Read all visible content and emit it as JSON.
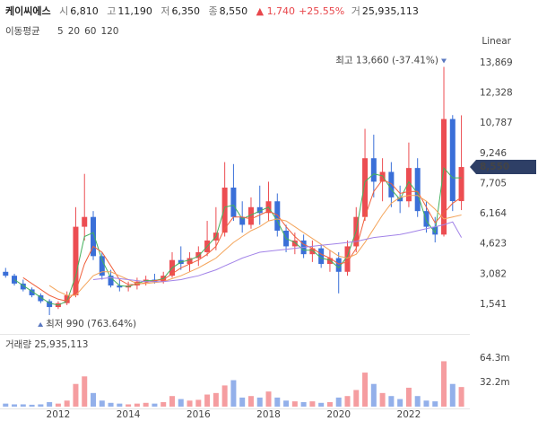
{
  "header": {
    "name": "케이씨에스",
    "items": [
      {
        "label": "시",
        "value": "6,810"
      },
      {
        "label": "고",
        "value": "11,190"
      },
      {
        "label": "저",
        "value": "6,350"
      },
      {
        "label": "종",
        "value": "8,550"
      }
    ],
    "change": "▲ 1,740",
    "change_pct": "+25.55%",
    "volume": {
      "label": "거",
      "value": "25,935,113"
    }
  },
  "chart_data": {
    "type": "candlestick",
    "scale_label": "Linear",
    "legend_title": "이동평균",
    "x": [
      2010.5,
      2010.75,
      2011.0,
      2011.25,
      2011.5,
      2011.75,
      2012.0,
      2012.25,
      2012.5,
      2012.75,
      2013.0,
      2013.25,
      2013.5,
      2013.75,
      2014.0,
      2014.25,
      2014.5,
      2014.75,
      2015.0,
      2015.25,
      2015.5,
      2015.75,
      2016.0,
      2016.25,
      2016.5,
      2016.75,
      2017.0,
      2017.25,
      2017.5,
      2017.75,
      2018.0,
      2018.25,
      2018.5,
      2018.75,
      2019.0,
      2019.25,
      2019.5,
      2019.75,
      2020.0,
      2020.25,
      2020.5,
      2020.75,
      2021.0,
      2021.25,
      2021.5,
      2021.75,
      2022.0,
      2022.25,
      2022.5,
      2022.75,
      2023.0,
      2023.25,
      2023.5
    ],
    "open": [
      3200,
      3000,
      2600,
      2300,
      2000,
      1700,
      1400,
      1600,
      2000,
      5500,
      6000,
      4000,
      3000,
      2500,
      2400,
      2500,
      2700,
      2800,
      2700,
      3000,
      3800,
      3600,
      3900,
      4200,
      4800,
      5200,
      7500,
      6000,
      5600,
      6500,
      6200,
      6800,
      5300,
      4500,
      4800,
      4100,
      4400,
      3600,
      3900,
      3200,
      4500,
      6000,
      9000,
      7800,
      8300,
      7000,
      6800,
      8500,
      6300,
      5500,
      5100,
      11000,
      6810
    ],
    "high": [
      3400,
      3100,
      2800,
      2400,
      2100,
      1800,
      1700,
      2200,
      6500,
      8200,
      6300,
      4200,
      3300,
      2800,
      2700,
      2900,
      3000,
      3100,
      3200,
      4200,
      4500,
      4200,
      4500,
      5800,
      6500,
      8800,
      8700,
      6800,
      7000,
      7600,
      7800,
      7200,
      5600,
      5200,
      5100,
      4800,
      4600,
      4300,
      4200,
      4800,
      6500,
      10500,
      10200,
      9000,
      8800,
      7600,
      9800,
      9000,
      6800,
      6000,
      13660,
      11200,
      11190
    ],
    "low": [
      2900,
      2500,
      2200,
      1900,
      1600,
      990,
      1300,
      1500,
      1900,
      4800,
      3800,
      2800,
      2400,
      2200,
      2200,
      2300,
      2500,
      2600,
      2600,
      2900,
      3300,
      3200,
      3500,
      4000,
      4300,
      5000,
      5800,
      5200,
      5400,
      5600,
      5800,
      5000,
      4200,
      4100,
      3900,
      3700,
      3400,
      3200,
      2100,
      3000,
      4200,
      5800,
      7000,
      6800,
      6500,
      6200,
      6500,
      6000,
      5200,
      4700,
      5000,
      6300,
      6350
    ],
    "close": [
      3000,
      2600,
      2300,
      2000,
      1700,
      1400,
      1600,
      2000,
      5500,
      6000,
      4000,
      3000,
      2500,
      2400,
      2500,
      2700,
      2800,
      2700,
      3000,
      3800,
      3600,
      3900,
      4200,
      4800,
      5200,
      7500,
      6000,
      5600,
      6500,
      6200,
      6800,
      5300,
      4500,
      4800,
      4100,
      4400,
      3600,
      3900,
      3200,
      4500,
      6000,
      9000,
      7800,
      8300,
      7000,
      6800,
      8500,
      6300,
      5500,
      5100,
      11000,
      6810,
      8550
    ],
    "volume": [
      4,
      3,
      3,
      2.5,
      3,
      6,
      4,
      8,
      30,
      40,
      18,
      8,
      5,
      4,
      3,
      4,
      5,
      4,
      6,
      14,
      10,
      8,
      9,
      16,
      18,
      28,
      35,
      12,
      14,
      12,
      20,
      12,
      8,
      7,
      6,
      7,
      5,
      6,
      12,
      14,
      22,
      45,
      30,
      18,
      14,
      10,
      25,
      14,
      8,
      7,
      60,
      30,
      25.935113
    ],
    "series": [
      {
        "name": "5",
        "color": "#43b05c",
        "values": [
          null,
          2800,
          2500,
          2200,
          1900,
          1600,
          1500,
          1700,
          3000,
          5000,
          5200,
          3800,
          2900,
          2500,
          2450,
          2600,
          2750,
          2750,
          2850,
          3400,
          3700,
          3800,
          4000,
          4500,
          5000,
          6500,
          6600,
          5900,
          6100,
          6300,
          6500,
          5800,
          4900,
          4700,
          4300,
          4300,
          3900,
          3800,
          3400,
          4000,
          5300,
          7800,
          8200,
          8100,
          7400,
          6900,
          7800,
          7200,
          5800,
          5200,
          8500,
          8000,
          8000
        ]
      },
      {
        "name": "20",
        "color": "#f0603c",
        "values": [
          null,
          null,
          2900,
          2600,
          2300,
          2000,
          1800,
          1700,
          2200,
          3600,
          4500,
          4200,
          3500,
          2800,
          2550,
          2550,
          2650,
          2750,
          2800,
          3100,
          3400,
          3600,
          3800,
          4100,
          4500,
          5400,
          6000,
          6000,
          5900,
          6100,
          6300,
          6100,
          5500,
          5000,
          4600,
          4400,
          4100,
          3900,
          3600,
          3700,
          4400,
          6000,
          7300,
          7900,
          7700,
          7200,
          7300,
          7300,
          6500,
          5700,
          6200,
          6700,
          7000
        ]
      },
      {
        "name": "60",
        "color": "#f4a45a",
        "values": [
          null,
          null,
          null,
          null,
          null,
          2500,
          2200,
          2000,
          2000,
          2500,
          3000,
          3200,
          3200,
          3000,
          2800,
          2600,
          2600,
          2650,
          2700,
          2850,
          3000,
          3200,
          3400,
          3650,
          3900,
          4300,
          4700,
          5000,
          5300,
          5500,
          5800,
          5900,
          5800,
          5500,
          5200,
          4900,
          4600,
          4300,
          4000,
          3900,
          4100,
          4700,
          5400,
          6100,
          6700,
          7000,
          7100,
          7100,
          6800,
          6400,
          5900,
          6000,
          6100
        ]
      },
      {
        "name": "120",
        "color": "#a283e8",
        "values": [
          null,
          null,
          null,
          null,
          null,
          null,
          null,
          null,
          null,
          null,
          2800,
          2850,
          2900,
          2850,
          2800,
          2750,
          2700,
          2700,
          2700,
          2750,
          2800,
          2900,
          3000,
          3150,
          3300,
          3500,
          3700,
          3900,
          4050,
          4200,
          4250,
          4300,
          4350,
          4400,
          4450,
          4500,
          4550,
          4600,
          4650,
          4700,
          4750,
          4850,
          4950,
          5000,
          5050,
          5100,
          5200,
          5300,
          5400,
          5500,
          5600,
          5750,
          4950
        ]
      }
    ],
    "up_color": "#ec4d52",
    "down_color": "#3a6fd8",
    "xlim": [
      2010.34,
      2023.69
    ],
    "xticks": [
      2012,
      2014,
      2016,
      2018,
      2020,
      2022
    ],
    "ylim": [
      120,
      14556
    ],
    "yticks": [
      {
        "value": 1541,
        "label": "1,541"
      },
      {
        "value": 3082,
        "label": "3,082"
      },
      {
        "value": 4623,
        "label": "4,623"
      },
      {
        "value": 6164,
        "label": "6,164"
      },
      {
        "value": 7705,
        "label": "7,705"
      },
      {
        "value": 9246,
        "label": "9,246"
      },
      {
        "value": 10787,
        "label": "10,787"
      },
      {
        "value": 12328,
        "label": "12,328"
      },
      {
        "value": 13869,
        "label": "13,869"
      }
    ],
    "price_tag": {
      "value": 8550,
      "label": "8,550"
    },
    "high_annotation": "최고 13,660 (-37.41%)",
    "low_annotation": "최저 990 (763.64%)",
    "volume_title": "거래량 25,935,113",
    "volume_ylim": [
      0,
      89
    ],
    "volume_ticks": [
      {
        "value": 32.2,
        "label": "32.2m"
      },
      {
        "value": 64.3,
        "label": "64.3m"
      }
    ],
    "grid": false
  }
}
